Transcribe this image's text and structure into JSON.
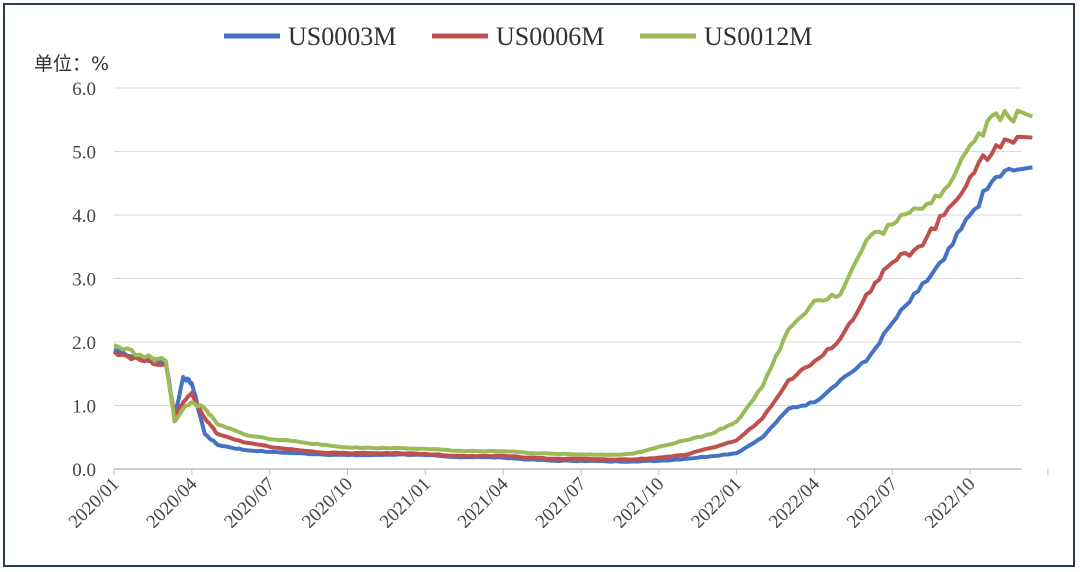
{
  "chart_data": {
    "type": "line",
    "unit_label": "单位：%",
    "y_ticks": [
      "0.0",
      "1.0",
      "2.0",
      "3.0",
      "4.0",
      "5.0",
      "6.0"
    ],
    "ylim": [
      0,
      6
    ],
    "grid": true,
    "legend_position": "top-center",
    "x_tick_labels": [
      "2020/01",
      "2020/04",
      "2020/07",
      "2020/10",
      "2021/01",
      "2021/04",
      "2021/07",
      "2021/10",
      "2022/01",
      "2022/04",
      "2022/07",
      "2022/10"
    ],
    "x_range_months": [
      "2020/01",
      "2022/12"
    ],
    "series": [
      {
        "name": "US0003M",
        "color": "#4472c4",
        "points": [
          [
            "2020/01",
            1.88
          ],
          [
            "2020/02",
            1.75
          ],
          [
            "2020/03",
            1.68
          ],
          [
            "2020/03",
            0.8
          ],
          [
            "2020/03",
            1.45
          ],
          [
            "2020/04",
            1.35
          ],
          [
            "2020/04",
            0.55
          ],
          [
            "2020/05",
            0.38
          ],
          [
            "2020/06",
            0.3
          ],
          [
            "2020/07",
            0.27
          ],
          [
            "2020/08",
            0.25
          ],
          [
            "2020/09",
            0.23
          ],
          [
            "2020/10",
            0.22
          ],
          [
            "2020/11",
            0.22
          ],
          [
            "2020/12",
            0.23
          ],
          [
            "2021/01",
            0.22
          ],
          [
            "2021/02",
            0.19
          ],
          [
            "2021/03",
            0.19
          ],
          [
            "2021/04",
            0.18
          ],
          [
            "2021/05",
            0.15
          ],
          [
            "2021/06",
            0.13
          ],
          [
            "2021/07",
            0.13
          ],
          [
            "2021/08",
            0.12
          ],
          [
            "2021/09",
            0.12
          ],
          [
            "2021/10",
            0.13
          ],
          [
            "2021/11",
            0.16
          ],
          [
            "2021/12",
            0.2
          ],
          [
            "2022/01",
            0.25
          ],
          [
            "2022/02",
            0.5
          ],
          [
            "2022/03",
            0.95
          ],
          [
            "2022/04",
            1.05
          ],
          [
            "2022/05",
            1.4
          ],
          [
            "2022/06",
            1.7
          ],
          [
            "2022/07",
            2.3
          ],
          [
            "2022/08",
            2.8
          ],
          [
            "2022/09",
            3.3
          ],
          [
            "2022/10",
            4.0
          ],
          [
            "2022/11",
            4.6
          ],
          [
            "2022/12",
            4.75
          ]
        ]
      },
      {
        "name": "US0006M",
        "color": "#c0504d",
        "points": [
          [
            "2020/01",
            1.85
          ],
          [
            "2020/02",
            1.72
          ],
          [
            "2020/03",
            1.65
          ],
          [
            "2020/03",
            0.85
          ],
          [
            "2020/03",
            1.05
          ],
          [
            "2020/04",
            1.2
          ],
          [
            "2020/04",
            0.8
          ],
          [
            "2020/05",
            0.55
          ],
          [
            "2020/06",
            0.42
          ],
          [
            "2020/07",
            0.35
          ],
          [
            "2020/08",
            0.3
          ],
          [
            "2020/09",
            0.26
          ],
          [
            "2020/10",
            0.25
          ],
          [
            "2020/11",
            0.25
          ],
          [
            "2020/12",
            0.25
          ],
          [
            "2021/01",
            0.24
          ],
          [
            "2021/02",
            0.21
          ],
          [
            "2021/03",
            0.2
          ],
          [
            "2021/04",
            0.21
          ],
          [
            "2021/05",
            0.18
          ],
          [
            "2021/06",
            0.16
          ],
          [
            "2021/07",
            0.16
          ],
          [
            "2021/08",
            0.15
          ],
          [
            "2021/09",
            0.15
          ],
          [
            "2021/10",
            0.18
          ],
          [
            "2021/11",
            0.22
          ],
          [
            "2021/12",
            0.33
          ],
          [
            "2022/01",
            0.45
          ],
          [
            "2022/02",
            0.8
          ],
          [
            "2022/03",
            1.4
          ],
          [
            "2022/04",
            1.7
          ],
          [
            "2022/05",
            2.05
          ],
          [
            "2022/06",
            2.75
          ],
          [
            "2022/07",
            3.25
          ],
          [
            "2022/08",
            3.5
          ],
          [
            "2022/09",
            4.0
          ],
          [
            "2022/10",
            4.6
          ],
          [
            "2022/11",
            5.1
          ],
          [
            "2022/12",
            5.22
          ]
        ]
      },
      {
        "name": "US0012M",
        "color": "#9bbb59",
        "points": [
          [
            "2020/01",
            1.95
          ],
          [
            "2020/02",
            1.8
          ],
          [
            "2020/03",
            1.7
          ],
          [
            "2020/03",
            0.75
          ],
          [
            "2020/03",
            0.95
          ],
          [
            "2020/04",
            1.05
          ],
          [
            "2020/04",
            0.95
          ],
          [
            "2020/05",
            0.7
          ],
          [
            "2020/06",
            0.55
          ],
          [
            "2020/07",
            0.47
          ],
          [
            "2020/08",
            0.44
          ],
          [
            "2020/09",
            0.38
          ],
          [
            "2020/10",
            0.34
          ],
          [
            "2020/11",
            0.33
          ],
          [
            "2020/12",
            0.33
          ],
          [
            "2021/01",
            0.32
          ],
          [
            "2021/02",
            0.29
          ],
          [
            "2021/03",
            0.28
          ],
          [
            "2021/04",
            0.28
          ],
          [
            "2021/05",
            0.25
          ],
          [
            "2021/06",
            0.24
          ],
          [
            "2021/07",
            0.23
          ],
          [
            "2021/08",
            0.22
          ],
          [
            "2021/09",
            0.24
          ],
          [
            "2021/10",
            0.35
          ],
          [
            "2021/11",
            0.45
          ],
          [
            "2021/12",
            0.55
          ],
          [
            "2022/01",
            0.75
          ],
          [
            "2022/02",
            1.3
          ],
          [
            "2022/03",
            2.2
          ],
          [
            "2022/04",
            2.65
          ],
          [
            "2022/05",
            2.75
          ],
          [
            "2022/06",
            3.6
          ],
          [
            "2022/07",
            3.85
          ],
          [
            "2022/08",
            4.1
          ],
          [
            "2022/09",
            4.4
          ],
          [
            "2022/10",
            5.1
          ],
          [
            "2022/11",
            5.6
          ],
          [
            "2022/12",
            5.55
          ]
        ]
      }
    ]
  }
}
